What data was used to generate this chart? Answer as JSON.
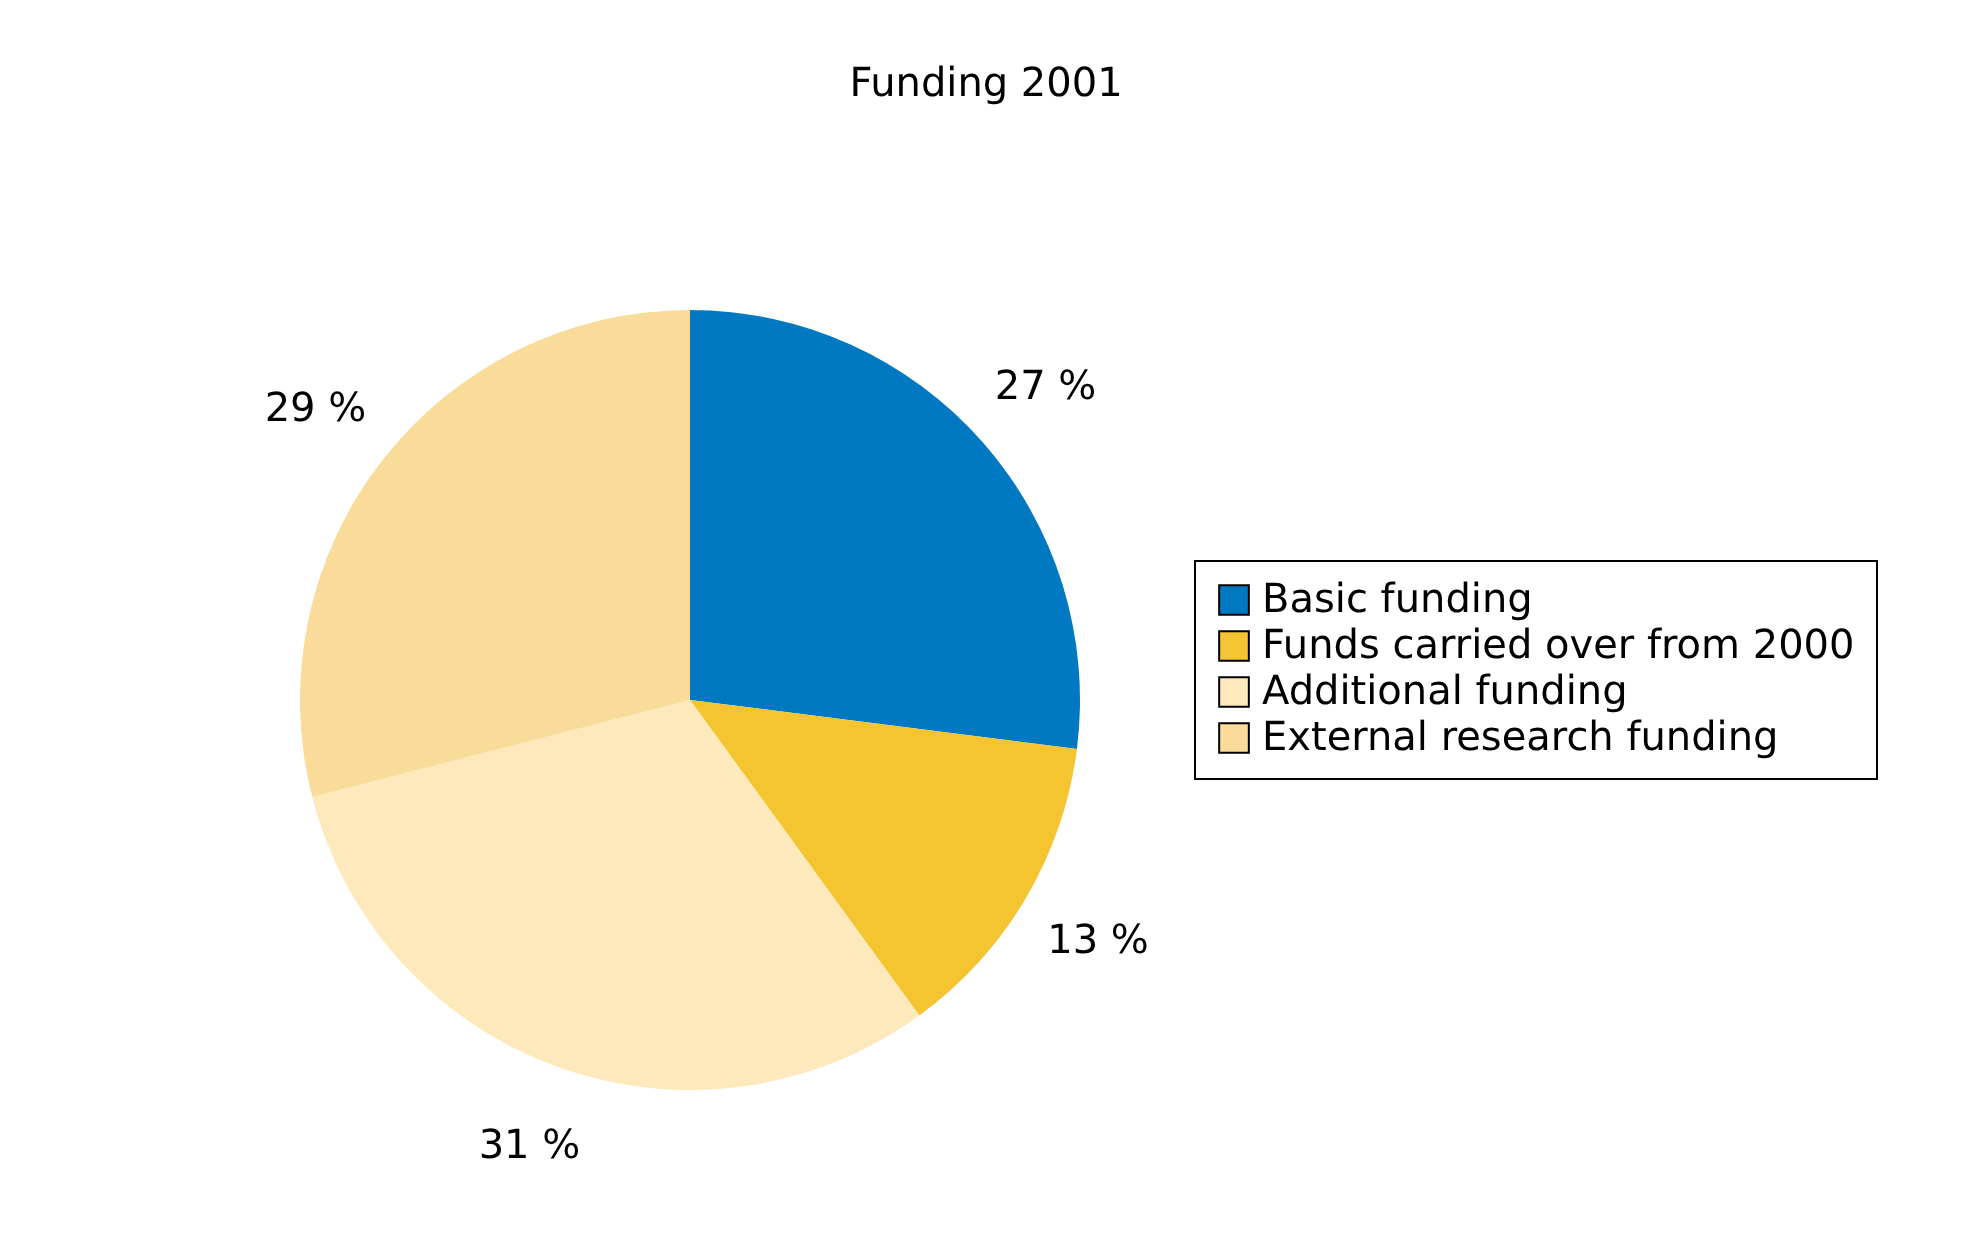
{
  "chart_data": {
    "type": "pie",
    "title": "Funding 2001",
    "categories": [
      "Basic funding",
      "Funds carried over from 2000",
      "Additional funding",
      "External research funding"
    ],
    "values": [
      27,
      13,
      31,
      29
    ],
    "colors": [
      "#0079c2",
      "#f5c431",
      "#fde9bc",
      "#f9dc9a"
    ],
    "value_labels": [
      "27 %",
      "13 %",
      "31 %",
      "29 %"
    ],
    "legend": "right"
  }
}
